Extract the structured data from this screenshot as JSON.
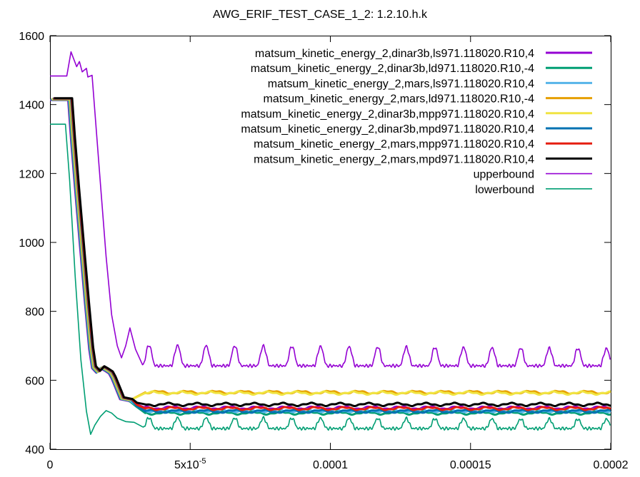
{
  "chart_data": {
    "type": "line",
    "title": "AWG_ERIF_TEST_CASE_1_2: 1.2.10.h.k",
    "xlabel": "",
    "ylabel": "",
    "xlim": [
      0,
      0.0002
    ],
    "ylim": [
      400,
      1600
    ],
    "x_ticks": [
      {
        "value": 0,
        "label": "0"
      },
      {
        "value": 5e-05,
        "label": "5x10",
        "sup": "-5"
      },
      {
        "value": 0.0001,
        "label": "0.0001"
      },
      {
        "value": 0.00015,
        "label": "0.00015"
      },
      {
        "value": 0.0002,
        "label": "0.0002"
      }
    ],
    "y_ticks": [
      {
        "value": 400,
        "label": "400"
      },
      {
        "value": 600,
        "label": "600"
      },
      {
        "value": 800,
        "label": "800"
      },
      {
        "value": 1000,
        "label": "1000"
      },
      {
        "value": 1200,
        "label": "1200"
      },
      {
        "value": 1400,
        "label": "1400"
      },
      {
        "value": 1600,
        "label": "1600"
      }
    ],
    "grid": false,
    "legend_position": "top-right",
    "series": [
      {
        "name": "matsum_kinetic_energy_2,dinar3b,ls971.118020.R10,4",
        "color": "#9400d3",
        "thick": true,
        "kind": "sim",
        "final": 520
      },
      {
        "name": "matsum_kinetic_energy_2,dinar3b,ld971.118020.R10,-4",
        "color": "#009e73",
        "thick": true,
        "kind": "sim",
        "final": 505
      },
      {
        "name": "matsum_kinetic_energy_2,mars,ls971.118020.R10,4",
        "color": "#56b4e9",
        "thick": true,
        "kind": "sim",
        "final": 512
      },
      {
        "name": "matsum_kinetic_energy_2,mars,ld971.118020.R10,-4",
        "color": "#e69f00",
        "thick": true,
        "kind": "sim",
        "final": 565
      },
      {
        "name": "matsum_kinetic_energy_2,dinar3b,mpp971.118020.R10,4",
        "color": "#f0e442",
        "thick": true,
        "kind": "sim",
        "final": 563
      },
      {
        "name": "matsum_kinetic_energy_2,dinar3b,mpd971.118020.R10,4",
        "color": "#0072b2",
        "thick": true,
        "kind": "sim",
        "final": 510
      },
      {
        "name": "matsum_kinetic_energy_2,mars,mpp971.118020.R10,4",
        "color": "#e51e10",
        "thick": true,
        "kind": "sim",
        "final": 518
      },
      {
        "name": "matsum_kinetic_energy_2,mars,mpd971.118020.R10,4",
        "color": "#000000",
        "thick": true,
        "kind": "sim",
        "final": 530
      },
      {
        "name": "upperbound",
        "color": "#9400d3",
        "thick": false,
        "kind": "upper",
        "points": [
          [
            0,
            1483
          ],
          [
            6e-06,
            1483
          ],
          [
            7.5e-06,
            1553
          ],
          [
            9.5e-06,
            1510
          ],
          [
            1.05e-05,
            1525
          ],
          [
            1.15e-05,
            1495
          ],
          [
            1.3e-05,
            1505
          ],
          [
            1.35e-05,
            1480
          ],
          [
            1.5e-05,
            1485
          ],
          [
            1.6e-05,
            1380
          ],
          [
            1.8e-05,
            1170
          ],
          [
            2e-05,
            960
          ],
          [
            2.2e-05,
            790
          ],
          [
            2.4e-05,
            700
          ],
          [
            2.55e-05,
            665
          ],
          [
            2.7e-05,
            700
          ],
          [
            2.85e-05,
            752
          ],
          [
            3.05e-05,
            690
          ],
          [
            3.3e-05,
            645
          ]
        ],
        "tail_base": 642,
        "tail_amp": 60,
        "tail_amp_end": 50
      },
      {
        "name": "lowerbound",
        "color": "#009e73",
        "thick": false,
        "kind": "lower",
        "points": [
          [
            0,
            1343
          ],
          [
            5.5e-06,
            1343
          ],
          [
            7e-06,
            1180
          ],
          [
            9e-06,
            900
          ],
          [
            1.1e-05,
            660
          ],
          [
            1.3e-05,
            510
          ],
          [
            1.45e-05,
            443
          ],
          [
            1.6e-05,
            470
          ],
          [
            1.8e-05,
            495
          ],
          [
            2e-05,
            512
          ],
          [
            2.2e-05,
            505
          ],
          [
            2.4e-05,
            490
          ],
          [
            2.7e-05,
            480
          ],
          [
            3e-05,
            478
          ],
          [
            3.3e-05,
            465
          ]
        ],
        "tail_base": 460,
        "tail_amp": 35,
        "tail_amp_end": 30
      }
    ],
    "common_path": [
      [
        0,
        1413
      ],
      [
        6.5e-06,
        1413
      ],
      [
        7.5e-06,
        1300
      ],
      [
        9e-06,
        1150
      ],
      [
        1.1e-05,
        960
      ],
      [
        1.25e-05,
        820
      ],
      [
        1.4e-05,
        690
      ],
      [
        1.5e-05,
        635
      ],
      [
        1.65e-05,
        622
      ],
      [
        1.8e-05,
        635
      ],
      [
        1.95e-05,
        628
      ],
      [
        2.1e-05,
        620
      ],
      [
        2.2e-05,
        605
      ],
      [
        2.3e-05,
        585
      ],
      [
        2.4e-05,
        565
      ],
      [
        2.5e-05,
        545
      ],
      [
        2.8e-05,
        540
      ]
    ],
    "tail_period": 1.02e-05
  }
}
